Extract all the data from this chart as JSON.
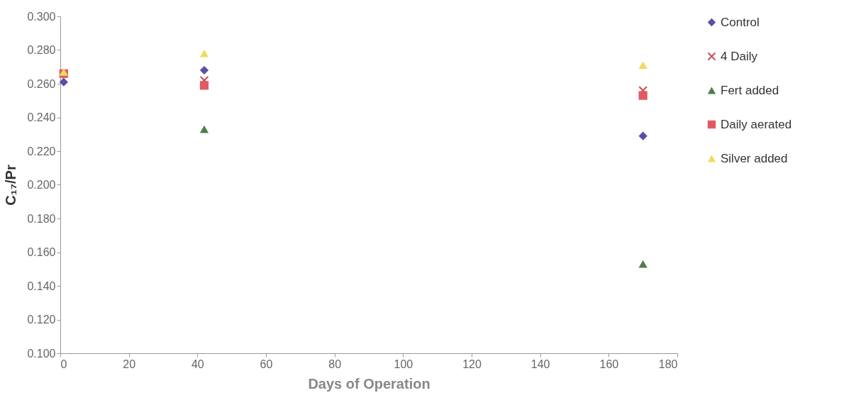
{
  "chart_data": {
    "type": "scatter",
    "xlabel": "Days of Operation",
    "ylabel": "C₁₇/Pr",
    "x": [
      1,
      42,
      170
    ],
    "xlim": [
      0,
      180
    ],
    "xticks": [
      0,
      20,
      40,
      60,
      80,
      100,
      120,
      140,
      160,
      180
    ],
    "ylim": [
      0.1,
      0.3
    ],
    "yticks": [
      {
        "value": 0.1,
        "label": "0.100"
      },
      {
        "value": 0.12,
        "label": "0.120"
      },
      {
        "value": 0.14,
        "label": "0.140"
      },
      {
        "value": 0.16,
        "label": "0.160"
      },
      {
        "value": 0.18,
        "label": "0.180"
      },
      {
        "value": 0.2,
        "label": "0.200"
      },
      {
        "value": 0.22,
        "label": "0.220"
      },
      {
        "value": 0.24,
        "label": "0.240"
      },
      {
        "value": 0.26,
        "label": "0.260"
      },
      {
        "value": 0.28,
        "label": "0.280"
      },
      {
        "value": 0.3,
        "label": "0.300"
      }
    ],
    "grid": false,
    "legend": "right",
    "series": [
      {
        "name": "Control",
        "color": "#5a4ea6",
        "marker": "diamond",
        "values": [
          0.261,
          0.268,
          0.229
        ]
      },
      {
        "name": "4 Daily",
        "color": "#c8505a",
        "marker": "cross",
        "values": [
          null,
          0.262,
          0.256
        ]
      },
      {
        "name": "Fert added",
        "color": "#4f7d4b",
        "marker": "triangle",
        "values": [
          null,
          0.233,
          0.153
        ]
      },
      {
        "name": "Daily aerated",
        "color": "#e05a62",
        "marker": "square",
        "values": [
          0.266,
          0.259,
          0.253
        ]
      },
      {
        "name": "Silver added",
        "color": "#eedc5c",
        "marker": "triangle",
        "values": [
          0.267,
          0.278,
          0.271
        ]
      }
    ]
  }
}
